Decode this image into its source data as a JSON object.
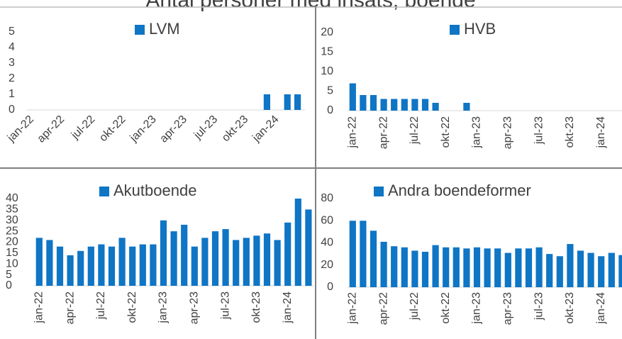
{
  "title": "Antal personer med insats, boende",
  "chart_data": [
    {
      "type": "bar",
      "categories": [
        "jan-22",
        null,
        null,
        "apr-22",
        null,
        null,
        "jul-22",
        null,
        null,
        "okt-22",
        null,
        null,
        "jan-23",
        null,
        null,
        "apr-23",
        null,
        null,
        "jul-23",
        null,
        null,
        "okt-23",
        null,
        null,
        "jan-24",
        null,
        null
      ],
      "series": [
        {
          "name": "LVM",
          "color": "#0f75c5",
          "values": [
            0,
            0,
            0,
            0,
            0,
            0,
            0,
            0,
            0,
            0,
            0,
            0,
            0,
            0,
            0,
            0,
            0,
            0,
            0,
            0,
            0,
            0,
            0,
            1,
            0,
            1,
            1
          ]
        }
      ],
      "ylim": [
        0,
        5
      ],
      "yticks": [
        0,
        1,
        2,
        3,
        4,
        5
      ]
    },
    {
      "type": "bar",
      "categories": [
        "jan-22",
        null,
        null,
        "apr-22",
        null,
        null,
        "jul-22",
        null,
        null,
        "okt-22",
        null,
        null,
        "jan-23",
        null,
        null,
        "apr-23",
        null,
        null,
        "jul-23",
        null,
        null,
        "okt-23",
        null,
        null,
        "jan-24",
        null,
        null
      ],
      "series": [
        {
          "name": "HVB",
          "color": "#0f75c5",
          "values": [
            7,
            4,
            4,
            3,
            3,
            3,
            3,
            3,
            2,
            0,
            0,
            2,
            0,
            0,
            0,
            0,
            0,
            0,
            0,
            0,
            0,
            0,
            0,
            0,
            0,
            0,
            0
          ]
        }
      ],
      "ylim": [
        0,
        20
      ],
      "yticks": [
        0,
        5,
        10,
        15,
        20
      ]
    },
    {
      "type": "bar",
      "categories": [
        "jan-22",
        null,
        null,
        "apr-22",
        null,
        null,
        "jul-22",
        null,
        null,
        "okt-22",
        null,
        null,
        "jan-23",
        null,
        null,
        "apr-23",
        null,
        null,
        "jul-23",
        null,
        null,
        "okt-23",
        null,
        null,
        "jan-24",
        null,
        null
      ],
      "series": [
        {
          "name": "Akutboende",
          "color": "#0f75c5",
          "values": [
            22,
            21,
            18,
            14,
            16,
            18,
            19,
            18,
            22,
            18,
            19,
            19,
            30,
            25,
            28,
            18,
            22,
            25,
            26,
            21,
            22,
            23,
            24,
            21,
            29,
            40,
            35
          ]
        }
      ],
      "ylim": [
        0,
        40
      ],
      "yticks": [
        0,
        5,
        10,
        15,
        20,
        25,
        30,
        35,
        40
      ]
    },
    {
      "type": "bar",
      "categories": [
        "jan-22",
        null,
        null,
        "apr-22",
        null,
        null,
        "jul-22",
        null,
        null,
        "okt-22",
        null,
        null,
        "jan-23",
        null,
        null,
        "apr-23",
        null,
        null,
        "jul-23",
        null,
        null,
        "okt-23",
        null,
        null,
        "jan-24",
        null,
        null
      ],
      "series": [
        {
          "name": "Andra boendeformer",
          "color": "#0f75c5",
          "values": [
            60,
            60,
            51,
            41,
            37,
            36,
            33,
            32,
            38,
            36,
            36,
            35,
            36,
            35,
            35,
            31,
            35,
            35,
            36,
            30,
            28,
            39,
            33,
            31,
            28,
            31,
            29
          ]
        }
      ],
      "ylim": [
        0,
        80
      ],
      "yticks": [
        0,
        20,
        40,
        60,
        80
      ]
    }
  ]
}
